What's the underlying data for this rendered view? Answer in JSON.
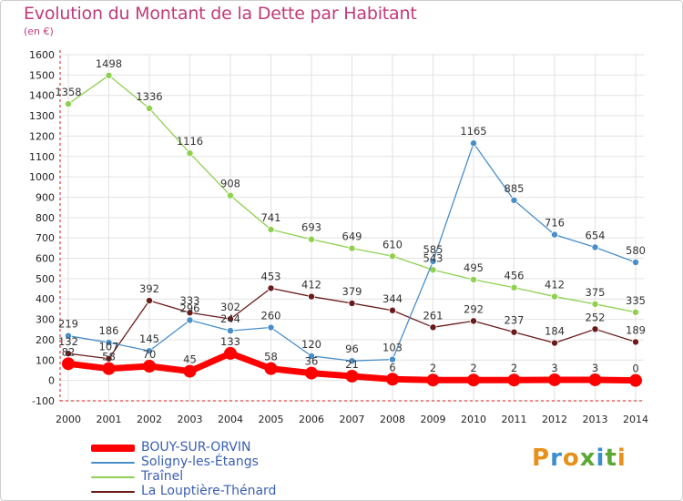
{
  "title": "Evolution du Montant de la Dette par Habitant",
  "subtitle": "(en €)",
  "logo": "Proxiti",
  "chart_data": {
    "type": "line",
    "title": "Evolution du Montant de la Dette par Habitant",
    "ylabel": "(en €)",
    "xlabel": "",
    "ylim": [
      -100,
      1600
    ],
    "grid": true,
    "legend_position": "bottom-left",
    "x": [
      "2000",
      "2001",
      "2002",
      "2003",
      "2004",
      "2005",
      "2006",
      "2007",
      "2008",
      "2009",
      "2010",
      "2011",
      "2012",
      "2013",
      "2014"
    ],
    "y_ticks": [
      "-100",
      "0",
      "100",
      "200",
      "300",
      "400",
      "500",
      "600",
      "700",
      "800",
      "900",
      "1000",
      "1100",
      "1200",
      "1300",
      "1400",
      "1500",
      "1600"
    ],
    "series": [
      {
        "name": "BOUY-SUR-ORVIN",
        "color": "#ff0000",
        "labels": [
          "82",
          "58",
          "70",
          "45",
          "133",
          "58",
          "36",
          "21",
          "6",
          "2",
          "2",
          "2",
          "3",
          "3",
          "0"
        ],
        "values": [
          82,
          58,
          70,
          45,
          133,
          58,
          36,
          21,
          6,
          2,
          2,
          2,
          3,
          3,
          0
        ]
      },
      {
        "name": "Soligny-les-Étangs",
        "color": "#4a8ec9",
        "labels": [
          "219",
          "186",
          "145",
          "296",
          "244",
          "260",
          "120",
          "96",
          "103",
          "585",
          "1165",
          "885",
          "716",
          "654",
          "580"
        ],
        "values": [
          219,
          186,
          145,
          296,
          244,
          260,
          120,
          96,
          103,
          585,
          1165,
          885,
          716,
          654,
          580
        ]
      },
      {
        "name": "Traînel",
        "color": "#8fd14f",
        "labels": [
          "1358",
          "1498",
          "1336",
          "1116",
          "908",
          "741",
          "693",
          "649",
          "610",
          "543",
          "495",
          "456",
          "412",
          "375",
          "335"
        ],
        "values": [
          1358,
          1498,
          1336,
          1116,
          908,
          741,
          693,
          649,
          610,
          543,
          495,
          456,
          412,
          375,
          335
        ]
      },
      {
        "name": "La Louptière-Thénard",
        "color": "#6b1a1a",
        "labels": [
          "132",
          "107",
          "392",
          "333",
          "302",
          "453",
          "412",
          "379",
          "344",
          "261",
          "292",
          "237",
          "184",
          "252",
          "189"
        ],
        "values": [
          132,
          107,
          392,
          333,
          302,
          453,
          412,
          379,
          344,
          261,
          292,
          237,
          184,
          252,
          189
        ]
      }
    ]
  }
}
